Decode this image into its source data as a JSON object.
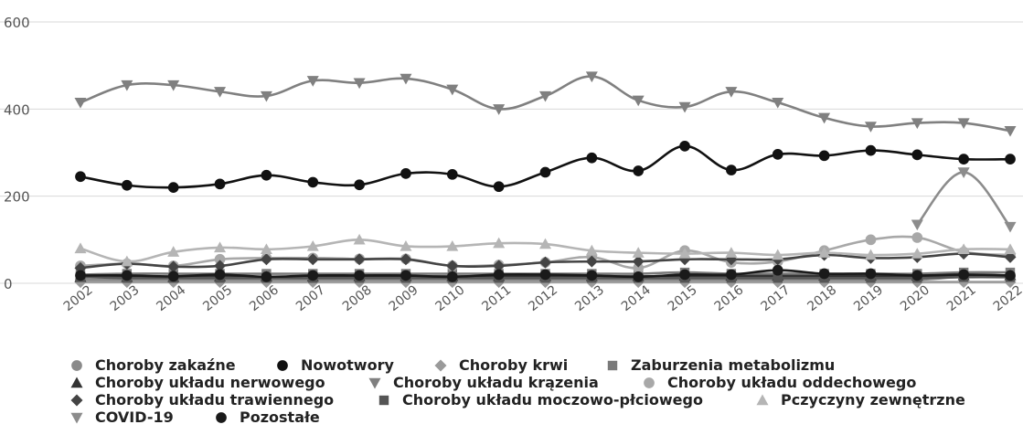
{
  "chart_data": {
    "type": "line",
    "title": "",
    "xlabel": "",
    "ylabel": "",
    "ylim": [
      0,
      600
    ],
    "yticks": [
      0,
      200,
      400,
      600
    ],
    "grid": true,
    "legend_position": "bottom",
    "categories": [
      "2002",
      "2003",
      "2004",
      "2005",
      "2006",
      "2007",
      "2008",
      "2009",
      "2010",
      "2011",
      "2012",
      "2013",
      "2014",
      "2015",
      "2016",
      "2017",
      "2018",
      "2019",
      "2020",
      "2021",
      "2022"
    ],
    "series": [
      {
        "name": "Choroby zakaźne",
        "marker": "circle",
        "color": "#8a8a8a",
        "values": [
          8,
          8,
          8,
          8,
          7,
          7,
          7,
          8,
          7,
          8,
          8,
          8,
          8,
          8,
          8,
          8,
          8,
          8,
          8,
          15,
          15
        ]
      },
      {
        "name": "Nowotwory",
        "marker": "circle",
        "color": "#111111",
        "values": [
          245,
          225,
          220,
          228,
          248,
          232,
          226,
          252,
          250,
          222,
          255,
          288,
          258,
          315,
          260,
          296,
          293,
          305,
          295,
          285,
          285
        ]
      },
      {
        "name": "Choroby krwi",
        "marker": "diamond",
        "color": "#9a9a9a",
        "values": [
          3,
          3,
          3,
          3,
          3,
          3,
          3,
          3,
          3,
          3,
          3,
          3,
          3,
          3,
          3,
          3,
          3,
          3,
          3,
          3,
          3
        ]
      },
      {
        "name": "Zaburzenia metabolizmu",
        "marker": "square",
        "color": "#7a7a7a",
        "values": [
          20,
          22,
          22,
          22,
          22,
          22,
          22,
          22,
          22,
          22,
          22,
          22,
          22,
          25,
          22,
          22,
          22,
          22,
          22,
          25,
          25
        ]
      },
      {
        "name": "Choroby układu nerwowego",
        "marker": "triangle-up",
        "color": "#333333",
        "values": [
          14,
          14,
          14,
          15,
          15,
          15,
          16,
          16,
          16,
          16,
          16,
          16,
          16,
          17,
          17,
          17,
          17,
          17,
          17,
          18,
          18
        ]
      },
      {
        "name": "Choroby układu krązenia",
        "marker": "triangle-down",
        "color": "#808080",
        "values": [
          415,
          455,
          455,
          440,
          430,
          465,
          460,
          470,
          445,
          400,
          430,
          475,
          420,
          405,
          440,
          415,
          380,
          360,
          368,
          368,
          350
        ]
      },
      {
        "name": "Choroby układu oddechowego",
        "marker": "circle",
        "color": "#a8a8a8",
        "values": [
          40,
          45,
          40,
          55,
          58,
          58,
          56,
          56,
          40,
          42,
          48,
          60,
          35,
          75,
          48,
          50,
          75,
          100,
          105,
          72,
          65
        ]
      },
      {
        "name": "Choroby układu trawiennego",
        "marker": "diamond",
        "color": "#444444",
        "values": [
          35,
          45,
          38,
          40,
          55,
          55,
          55,
          55,
          40,
          40,
          48,
          50,
          50,
          55,
          55,
          55,
          65,
          58,
          60,
          68,
          60
        ]
      },
      {
        "name": "Choroby układu moczowo-płciowego",
        "marker": "square",
        "color": "#555555",
        "values": [
          15,
          12,
          12,
          12,
          12,
          12,
          12,
          12,
          12,
          12,
          12,
          12,
          12,
          12,
          12,
          12,
          12,
          12,
          12,
          14,
          14
        ]
      },
      {
        "name": "Pczyczyny zewnętrzne",
        "marker": "triangle-up",
        "color": "#b5b5b5",
        "values": [
          80,
          50,
          72,
          82,
          78,
          85,
          100,
          85,
          85,
          92,
          90,
          75,
          70,
          68,
          70,
          65,
          70,
          65,
          68,
          78,
          78
        ]
      },
      {
        "name": "COVID-19",
        "marker": "triangle-down",
        "color": "#8c8c8c",
        "values": [
          null,
          null,
          null,
          null,
          null,
          null,
          null,
          null,
          null,
          null,
          null,
          null,
          null,
          null,
          null,
          null,
          null,
          null,
          135,
          255,
          130
        ]
      },
      {
        "name": "Pozostałe",
        "marker": "circle",
        "color": "#1a1a1a",
        "values": [
          18,
          18,
          16,
          20,
          15,
          18,
          18,
          18,
          15,
          20,
          20,
          18,
          15,
          20,
          20,
          30,
          22,
          22,
          18,
          20,
          18
        ]
      }
    ]
  }
}
